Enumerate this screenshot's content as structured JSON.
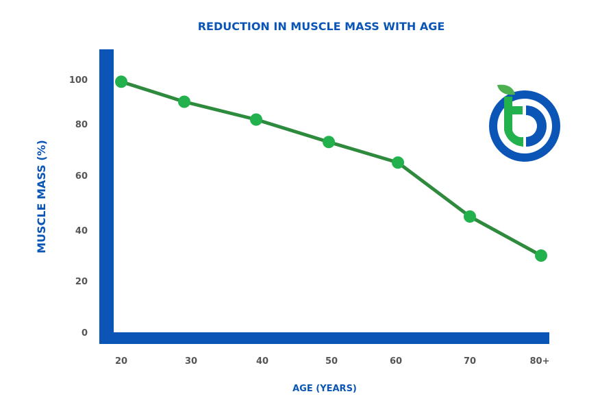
{
  "chart_data": {
    "type": "line",
    "title": "REDUCTION IN MUSCLE MASS WITH AGE",
    "xlabel": "AGE (YEARS)",
    "ylabel": "MUSCLE MASS (%)",
    "categories": [
      "20",
      "30",
      "40",
      "50",
      "60",
      "70",
      "80+"
    ],
    "values": [
      99,
      90,
      82,
      73,
      65,
      45,
      30
    ],
    "yticks": [
      "0",
      "20",
      "40",
      "60",
      "80",
      "100"
    ],
    "ylim": [
      0,
      100
    ],
    "grid": false,
    "legend": "none",
    "colors": {
      "axis": "#0a55b5",
      "line": "#2e8b3e",
      "marker": "#22b14c",
      "title": "#0a55b5",
      "ticks": "#555555"
    }
  },
  "logo": {
    "icon": "brand-logo-icon",
    "colors": [
      "#0a55b5",
      "#22b14c"
    ]
  }
}
